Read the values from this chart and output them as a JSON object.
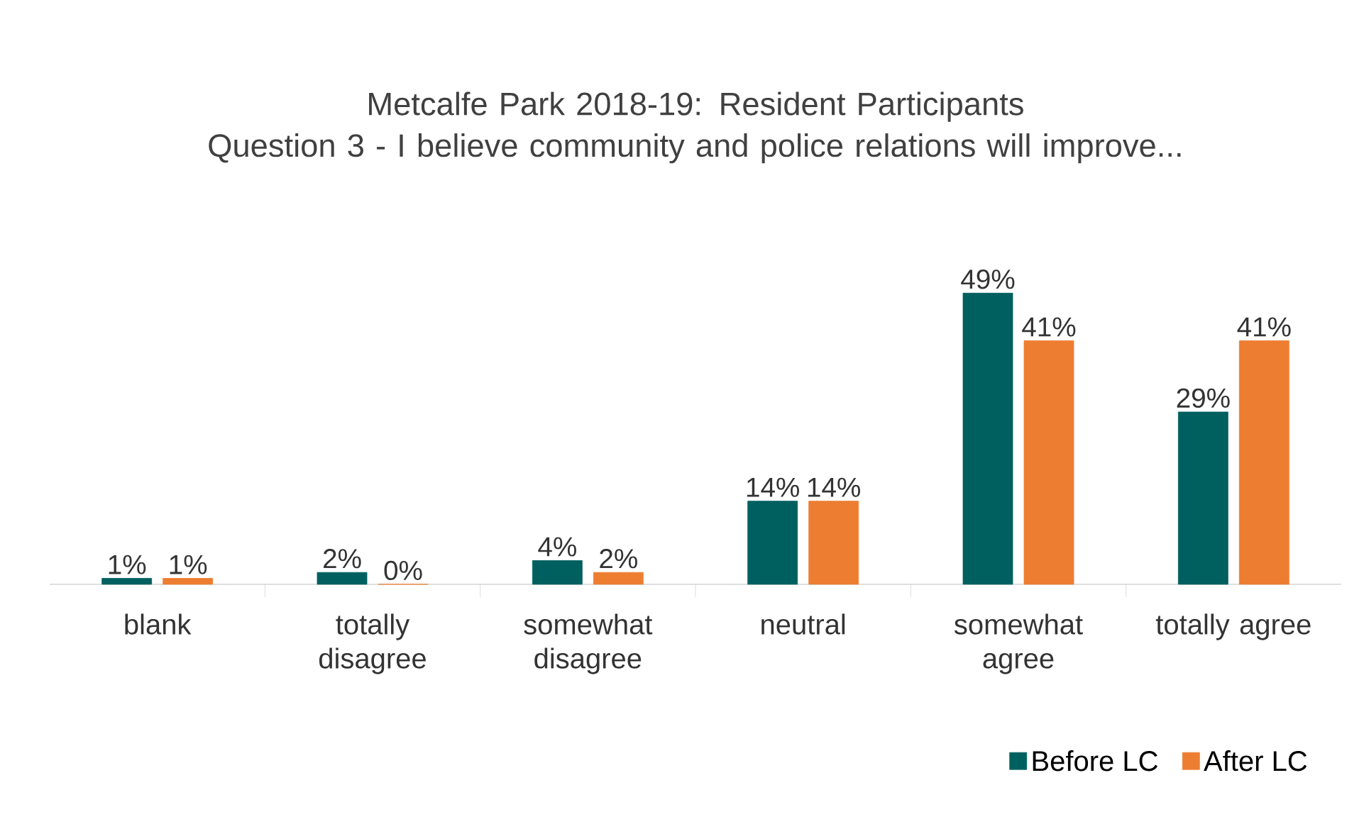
{
  "chart_data": {
    "type": "bar",
    "title": "Metcalfe Park 2018-19: Resident Participants",
    "subtitle": "Question 3 - I believe  community and police relations will improve...",
    "categories": [
      "blank",
      "totally disagree",
      "somewhat disagree",
      "neutral",
      "somewhat agree",
      "totally agree"
    ],
    "series": [
      {
        "name": "Before LC",
        "color": "#00605f",
        "values": [
          1,
          2,
          4,
          14,
          49,
          29
        ],
        "value_labels": [
          "1%",
          "2%",
          "4%",
          "14%",
          "49%",
          "29%"
        ]
      },
      {
        "name": "After LC",
        "color": "#ed7d31",
        "values": [
          1,
          0,
          2,
          14,
          41,
          41
        ],
        "value_labels": [
          "1%",
          "0%",
          "2%",
          "14%",
          "41%",
          "41%"
        ]
      }
    ],
    "legend": "bottom right"
  }
}
